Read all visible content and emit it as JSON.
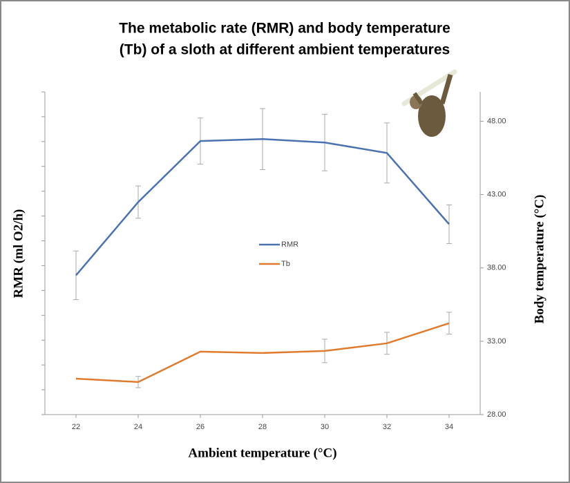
{
  "chart_data": {
    "type": "line",
    "title": [
      "The metabolic rate (RMR) and body temperature",
      "(Tb) of a sloth at different ambient temperatures"
    ],
    "xlabel": "Ambient temperature (°C)",
    "ylabel": "RMR (ml O2/h)",
    "y2label": "Body temperature (°C)",
    "x": [
      22,
      24,
      26,
      28,
      30,
      32,
      34
    ],
    "xlim": [
      21,
      35
    ],
    "xticks": [
      22,
      24,
      26,
      28,
      30,
      32,
      34
    ],
    "ylim": [
      0,
      13
    ],
    "yticks": [
      0,
      1,
      2,
      3,
      4,
      5,
      6,
      7,
      8,
      9,
      10,
      11,
      12,
      13
    ],
    "y2lim": [
      28,
      50
    ],
    "y2ticks": [
      {
        "value": 28,
        "label": "28.00"
      },
      {
        "value": 33,
        "label": "33.00"
      },
      {
        "value": 38,
        "label": "38.00"
      },
      {
        "value": 43,
        "label": "43.00"
      },
      {
        "value": 48,
        "label": "48.00"
      }
    ],
    "legend": "center",
    "series": [
      {
        "name": "RMR",
        "color": "#4a72b0",
        "values": [
          5.61,
          8.56,
          11.02,
          11.1,
          10.96,
          10.54,
          7.67
        ],
        "errors": [
          0.98,
          0.65,
          0.93,
          1.23,
          1.14,
          1.21,
          0.78
        ]
      },
      {
        "name": "Tb",
        "color": "#e07b2e",
        "axis": "y2",
        "values": [
          30.45,
          30.22,
          32.29,
          32.2,
          32.34,
          32.86,
          34.23
        ],
        "errors": [
          null,
          0.38,
          null,
          null,
          0.8,
          0.75,
          0.75
        ]
      }
    ]
  }
}
